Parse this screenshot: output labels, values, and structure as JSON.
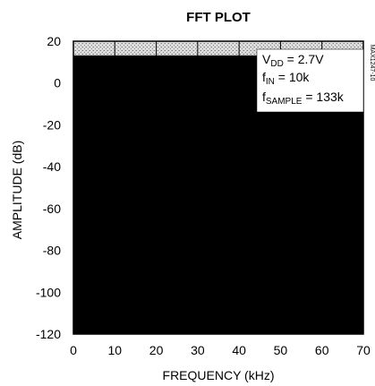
{
  "chart_data": {
    "type": "area",
    "title": "FFT PLOT",
    "xlabel": "FREQUENCY (kHz)",
    "ylabel": "AMPLITUDE (dB)",
    "xlim": [
      0,
      70
    ],
    "ylim": [
      -120,
      20
    ],
    "x_ticks": [
      "0",
      "10",
      "20",
      "30",
      "40",
      "50",
      "60",
      "70"
    ],
    "y_ticks": [
      "20",
      "0",
      "-20",
      "-40",
      "-60",
      "-80",
      "-100",
      "-120"
    ],
    "grid": true,
    "series": [
      {
        "x": [
          0,
          10,
          20,
          30,
          40,
          50,
          60,
          70
        ],
        "y": [
          13,
          13,
          13,
          13,
          13,
          13,
          13,
          13
        ],
        "fill": "#000000"
      }
    ],
    "annotations": [
      {
        "main": "V",
        "sub": "DD",
        "rest": " = 2.7V"
      },
      {
        "main": "f",
        "sub": "IN",
        "rest": " = 10k"
      },
      {
        "main": "f",
        "sub": "SAMPLE",
        "rest": " = 133k"
      }
    ],
    "side_code": "MAX1247-10"
  }
}
